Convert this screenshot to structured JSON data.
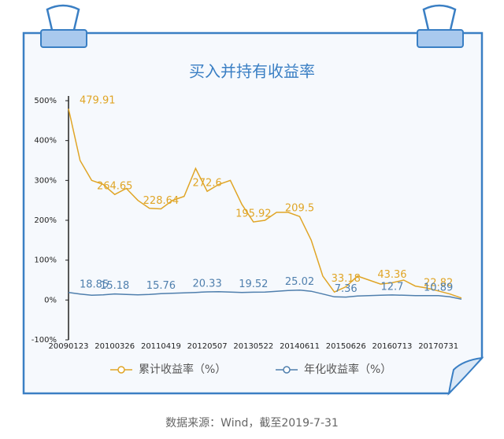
{
  "chart_data": {
    "type": "line",
    "title": "买入并持有收益率",
    "categories": [
      "20090123",
      null,
      null,
      null,
      "20100326",
      null,
      null,
      null,
      "20110419",
      null,
      null,
      null,
      "20120507",
      null,
      null,
      null,
      "20130522",
      null,
      null,
      null,
      "20140611",
      null,
      null,
      null,
      "20150626",
      null,
      null,
      null,
      "20160713",
      null,
      null,
      null,
      "20170731",
      null,
      null
    ],
    "series": [
      {
        "name": "累计收益率（%）",
        "color": "#e0a526",
        "values": [
          479.91,
          350,
          300,
          290,
          264.65,
          280,
          250,
          230,
          228.64,
          250,
          260,
          330,
          272.6,
          290,
          300,
          240,
          195.92,
          200,
          220,
          220,
          209.5,
          150,
          60,
          20,
          33.18,
          60,
          50,
          40,
          43.36,
          50,
          35,
          30,
          22.82,
          15,
          5
        ]
      },
      {
        "name": "年化收益率（%）",
        "color": "#4f7fad",
        "values": [
          18.85,
          15,
          12,
          13,
          15.18,
          14,
          13,
          14,
          15.76,
          17,
          18,
          19,
          20.33,
          21,
          20,
          19,
          19.52,
          20,
          22,
          24,
          25.02,
          22,
          15,
          8,
          7.36,
          10,
          11,
          12,
          12.7,
          12,
          11,
          11,
          10.89,
          8,
          2
        ]
      }
    ],
    "ylim": [
      -100,
      500
    ],
    "yticks": [
      {
        "value": -100,
        "label": "-100%"
      },
      {
        "value": 0,
        "label": "0%"
      },
      {
        "value": 100,
        "label": "100%"
      },
      {
        "value": 200,
        "label": "200%"
      },
      {
        "value": 300,
        "label": "300%"
      },
      {
        "value": 400,
        "label": "400%"
      },
      {
        "value": 500,
        "label": "500%"
      }
    ],
    "legend": "bottom",
    "source": "数据来源：Wind，截至2019-7-31"
  }
}
